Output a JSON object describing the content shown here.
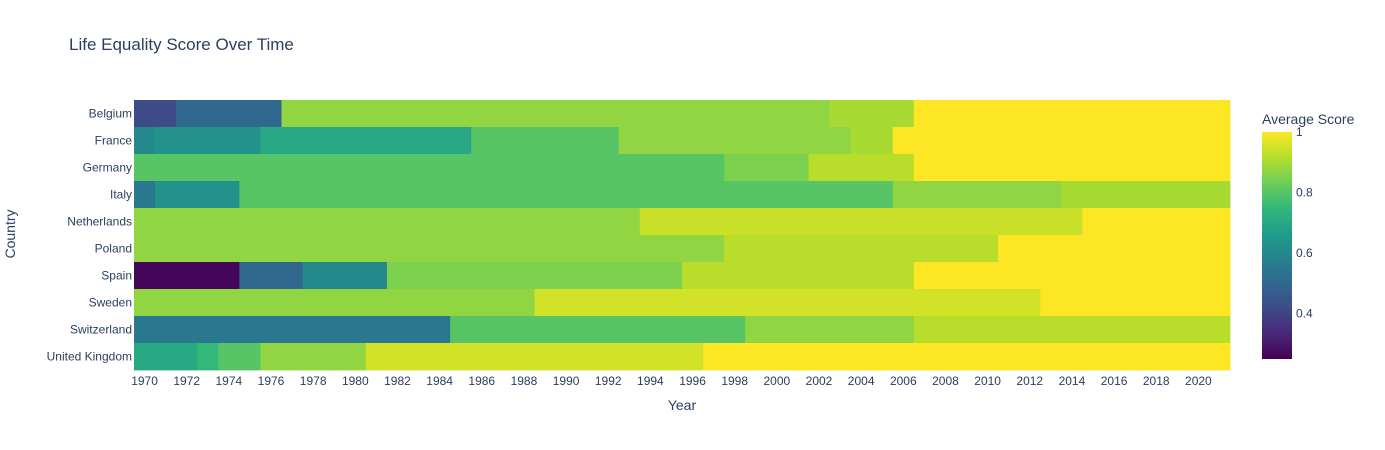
{
  "chart_data": {
    "type": "heatmap",
    "title": "Life Equality Score Over Time",
    "xlabel": "Year",
    "ylabel": "Country",
    "colorbar_title": "Average Score",
    "colorscale": "viridis",
    "zlim": [
      0.25,
      1.0
    ],
    "colorbar_ticks": [
      0.4,
      0.6,
      0.8,
      1
    ],
    "colorbar_tick_labels": [
      "0.4",
      "0.6",
      "0.8",
      "1"
    ],
    "x_start": 1970,
    "x_end": 2021,
    "x_ticks": [
      1970,
      1972,
      1974,
      1976,
      1978,
      1980,
      1982,
      1984,
      1986,
      1988,
      1990,
      1992,
      1994,
      1996,
      1998,
      2000,
      2002,
      2004,
      2006,
      2008,
      2010,
      2012,
      2014,
      2016,
      2018,
      2020
    ],
    "countries": [
      "Belgium",
      "France",
      "Germany",
      "Italy",
      "Netherlands",
      "Poland",
      "Spain",
      "Sweden",
      "Switzerland",
      "United Kingdom"
    ],
    "segments": {
      "Belgium": [
        [
          1970,
          1971,
          0.42
        ],
        [
          1972,
          1976,
          0.5
        ],
        [
          1977,
          2002,
          0.875
        ],
        [
          2003,
          2006,
          0.9
        ],
        [
          2007,
          2021,
          1.0
        ]
      ],
      "France": [
        [
          1970,
          1970,
          0.6
        ],
        [
          1971,
          1975,
          0.63
        ],
        [
          1976,
          1985,
          0.7
        ],
        [
          1986,
          1992,
          0.8
        ],
        [
          1993,
          2003,
          0.875
        ],
        [
          2004,
          2005,
          0.9
        ],
        [
          2006,
          2021,
          1.0
        ]
      ],
      "Germany": [
        [
          1970,
          1997,
          0.8
        ],
        [
          1998,
          2001,
          0.85
        ],
        [
          2002,
          2006,
          0.92
        ],
        [
          2007,
          2021,
          1.0
        ]
      ],
      "Italy": [
        [
          1970,
          1970,
          0.55
        ],
        [
          1971,
          1974,
          0.63
        ],
        [
          1975,
          2005,
          0.8
        ],
        [
          2006,
          2013,
          0.875
        ],
        [
          2014,
          2021,
          0.9
        ]
      ],
      "Netherlands": [
        [
          1970,
          1993,
          0.875
        ],
        [
          1994,
          2014,
          0.94
        ],
        [
          2015,
          2021,
          1.0
        ]
      ],
      "Poland": [
        [
          1970,
          1997,
          0.875
        ],
        [
          1998,
          2010,
          0.92
        ],
        [
          2011,
          2021,
          1.0
        ]
      ],
      "Spain": [
        [
          1970,
          1974,
          0.26
        ],
        [
          1975,
          1977,
          0.5
        ],
        [
          1978,
          1981,
          0.6
        ],
        [
          1982,
          1995,
          0.85
        ],
        [
          1996,
          2006,
          0.92
        ],
        [
          2007,
          2021,
          1.0
        ]
      ],
      "Sweden": [
        [
          1970,
          1988,
          0.875
        ],
        [
          1989,
          2012,
          0.95
        ],
        [
          2013,
          2021,
          1.0
        ]
      ],
      "Switzerland": [
        [
          1970,
          1984,
          0.55
        ],
        [
          1985,
          1998,
          0.8
        ],
        [
          1999,
          2006,
          0.875
        ],
        [
          2007,
          2021,
          0.92
        ]
      ],
      "United Kingdom": [
        [
          1970,
          1972,
          0.7
        ],
        [
          1973,
          1973,
          0.75
        ],
        [
          1974,
          1975,
          0.8
        ],
        [
          1976,
          1980,
          0.875
        ],
        [
          1981,
          1996,
          0.95
        ],
        [
          1997,
          2021,
          1.0
        ]
      ]
    }
  }
}
